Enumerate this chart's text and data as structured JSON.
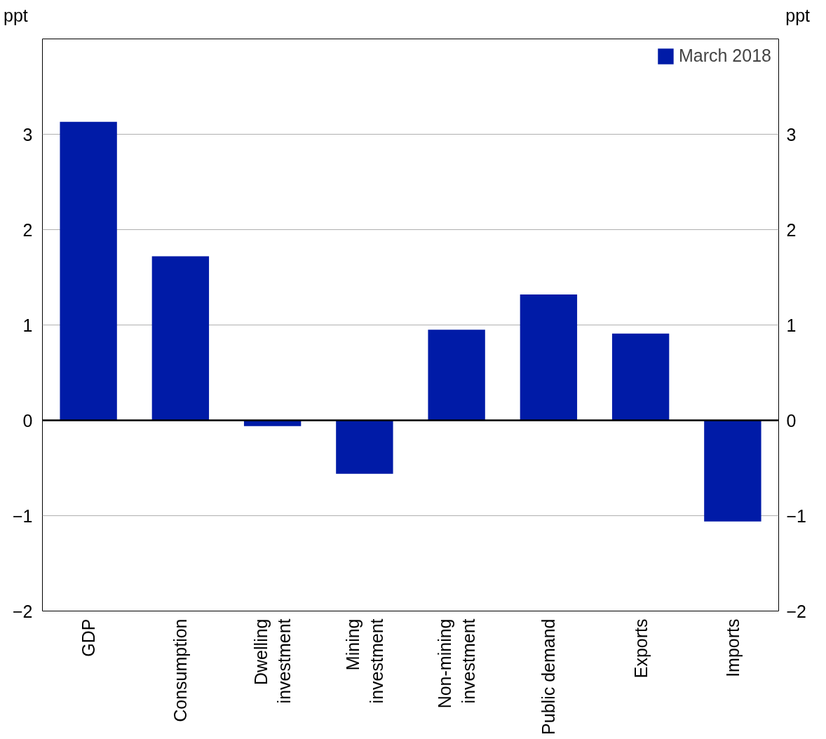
{
  "chart_data": {
    "type": "bar",
    "categories": [
      "GDP",
      "Consumption",
      "Dwelling\ninvestment",
      "Mining\ninvestment",
      "Non-mining\ninvestment",
      "Public demand",
      "Exports",
      "Imports"
    ],
    "series": [
      {
        "name": "March 2018",
        "color": "#001ba7",
        "values": [
          3.13,
          1.72,
          -0.06,
          -0.56,
          0.95,
          1.32,
          0.91,
          -1.06
        ]
      }
    ],
    "ylabel": "ppt",
    "y2label": "ppt",
    "ylim": [
      -2,
      4
    ],
    "yticks": [
      -2,
      -1,
      0,
      1,
      2,
      3
    ],
    "y2lim": [
      -2,
      4
    ],
    "y2ticks": [
      -2,
      -1,
      0,
      1,
      2,
      3
    ],
    "ref_lines": [
      {
        "axis": "y",
        "value": 0,
        "color": "#000000"
      }
    ],
    "grid": "y",
    "legend": "top right"
  }
}
